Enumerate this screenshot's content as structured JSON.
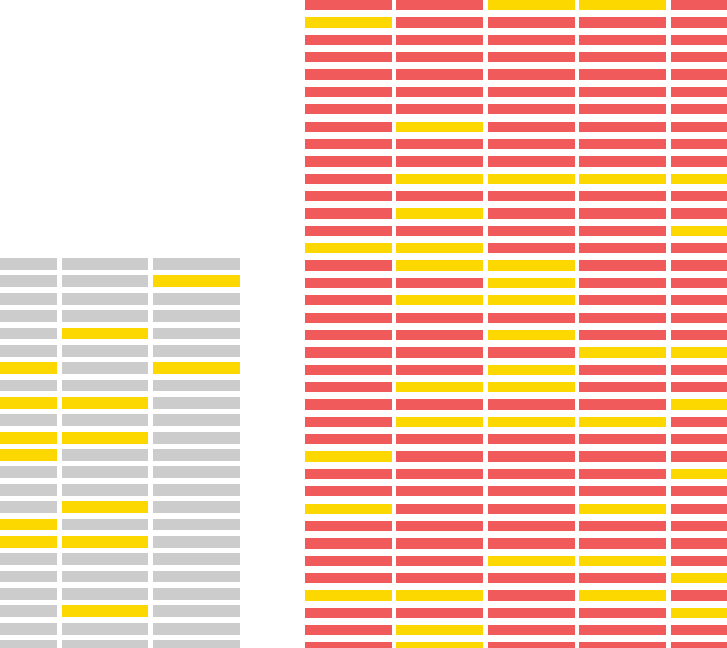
{
  "colors": {
    "background": "#ffffff",
    "gray": "#cccccc",
    "red": "#f05a5b",
    "yellow": "#fcd700"
  },
  "chart_data": {
    "type": "heatmap",
    "encoding": {
      "0": "base",
      "1": "highlight"
    },
    "grids": [
      {
        "id": "gray-grid",
        "base_color": "gray",
        "highlight_color": "yellow",
        "columns": 3,
        "rows": [
          [
            0,
            0,
            0
          ],
          [
            0,
            0,
            1
          ],
          [
            0,
            0,
            0
          ],
          [
            0,
            0,
            0
          ],
          [
            0,
            1,
            0
          ],
          [
            0,
            0,
            0
          ],
          [
            1,
            0,
            1
          ],
          [
            0,
            0,
            0
          ],
          [
            1,
            1,
            0
          ],
          [
            0,
            0,
            0
          ],
          [
            1,
            1,
            0
          ],
          [
            1,
            0,
            0
          ],
          [
            0,
            0,
            0
          ],
          [
            0,
            0,
            0
          ],
          [
            0,
            1,
            0
          ],
          [
            1,
            0,
            0
          ],
          [
            1,
            1,
            0
          ],
          [
            0,
            0,
            0
          ],
          [
            0,
            0,
            0
          ],
          [
            0,
            0,
            0
          ],
          [
            0,
            1,
            0
          ],
          [
            0,
            0,
            0
          ],
          [
            0,
            0,
            0
          ]
        ]
      },
      {
        "id": "red-grid",
        "base_color": "red",
        "highlight_color": "yellow",
        "columns": 5,
        "rows": [
          [
            0,
            0,
            1,
            1,
            0
          ],
          [
            1,
            0,
            0,
            0,
            0
          ],
          [
            0,
            0,
            0,
            0,
            0
          ],
          [
            0,
            0,
            0,
            0,
            0
          ],
          [
            0,
            0,
            0,
            0,
            0
          ],
          [
            0,
            0,
            0,
            0,
            0
          ],
          [
            0,
            0,
            0,
            0,
            0
          ],
          [
            0,
            1,
            0,
            0,
            0
          ],
          [
            0,
            0,
            0,
            0,
            0
          ],
          [
            0,
            0,
            0,
            0,
            0
          ],
          [
            0,
            1,
            1,
            1,
            1
          ],
          [
            0,
            0,
            0,
            0,
            0
          ],
          [
            0,
            1,
            0,
            0,
            0
          ],
          [
            0,
            0,
            0,
            0,
            1
          ],
          [
            1,
            1,
            0,
            0,
            0
          ],
          [
            0,
            1,
            1,
            0,
            0
          ],
          [
            0,
            0,
            1,
            0,
            0
          ],
          [
            0,
            1,
            1,
            0,
            0
          ],
          [
            0,
            0,
            0,
            0,
            0
          ],
          [
            0,
            0,
            1,
            0,
            0
          ],
          [
            0,
            0,
            0,
            1,
            1
          ],
          [
            0,
            0,
            1,
            0,
            0
          ],
          [
            0,
            1,
            1,
            0,
            0
          ],
          [
            0,
            0,
            0,
            0,
            1
          ],
          [
            0,
            1,
            1,
            1,
            0
          ],
          [
            0,
            0,
            0,
            0,
            0
          ],
          [
            1,
            0,
            0,
            0,
            0
          ],
          [
            0,
            0,
            0,
            0,
            1
          ],
          [
            0,
            0,
            0,
            0,
            0
          ],
          [
            1,
            0,
            0,
            1,
            0
          ],
          [
            0,
            0,
            0,
            0,
            0
          ],
          [
            0,
            0,
            0,
            0,
            0
          ],
          [
            0,
            0,
            1,
            1,
            0
          ],
          [
            0,
            0,
            0,
            0,
            1
          ],
          [
            1,
            1,
            0,
            1,
            0
          ],
          [
            0,
            0,
            0,
            0,
            1
          ],
          [
            0,
            1,
            0,
            0,
            0
          ],
          [
            0,
            1,
            0,
            0,
            0
          ]
        ]
      }
    ]
  }
}
